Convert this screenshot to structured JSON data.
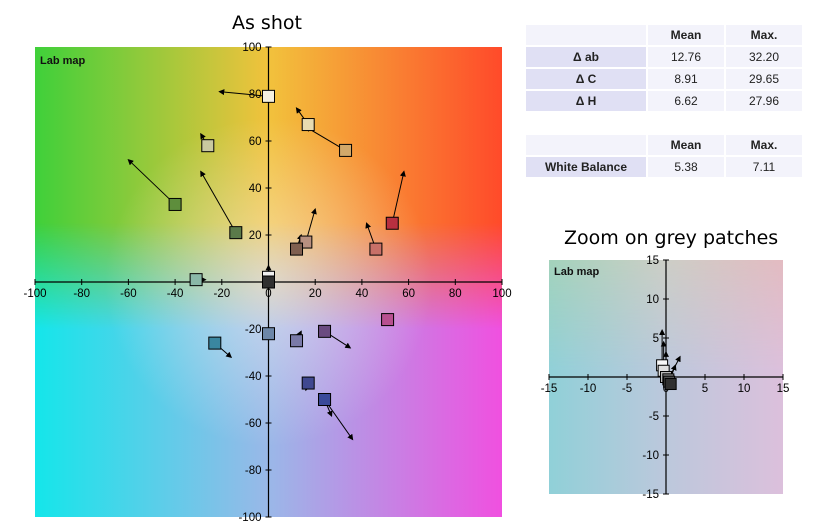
{
  "titles": {
    "main": "As shot",
    "zoom": "Zoom on grey patches"
  },
  "stats_table_1": {
    "headers": [
      "",
      "Mean",
      "Max."
    ],
    "rows": [
      {
        "label": "Δ ab",
        "mean": "12.76",
        "max": "32.20"
      },
      {
        "label": "Δ C",
        "mean": "8.91",
        "max": "29.65"
      },
      {
        "label": "Δ H",
        "mean": "6.62",
        "max": "27.96"
      }
    ]
  },
  "stats_table_2": {
    "headers": [
      "",
      "Mean",
      "Max."
    ],
    "rows": [
      {
        "label": "White Balance",
        "mean": "5.38",
        "max": "7.11"
      }
    ]
  },
  "chart_data": [
    {
      "type": "scatter",
      "title": "As shot",
      "inset_label": "Lab map",
      "xlim": [
        -100,
        100
      ],
      "ylim": [
        -100,
        100
      ],
      "xticks": [
        -100,
        -80,
        -60,
        -40,
        -20,
        0,
        20,
        40,
        60,
        80,
        100
      ],
      "yticks": [
        -100,
        -80,
        -60,
        -40,
        -20,
        0,
        20,
        40,
        60,
        80,
        100
      ],
      "background": "Lab color map",
      "patches": [
        {
          "a": 0,
          "b": 79,
          "to_a": -21,
          "to_b": 81,
          "color": "#f5f0e0"
        },
        {
          "a": 17,
          "b": 67,
          "to_a": 12,
          "to_b": 74,
          "color": "#e8dcb0"
        },
        {
          "a": 33,
          "b": 56,
          "to_a": 16,
          "to_b": 66,
          "color": "#d2a96a"
        },
        {
          "a": -26,
          "b": 58,
          "to_a": -29,
          "to_b": 63,
          "color": "#c9c9a0"
        },
        {
          "a": -40,
          "b": 33,
          "to_a": -60,
          "to_b": 52,
          "color": "#5e8e3c"
        },
        {
          "a": -14,
          "b": 21,
          "to_a": -29,
          "to_b": 47,
          "color": "#5a7a4a"
        },
        {
          "a": 53,
          "b": 25,
          "to_a": 58,
          "to_b": 47,
          "color": "#b83040"
        },
        {
          "a": 46,
          "b": 14,
          "to_a": 42,
          "to_b": 25,
          "color": "#c87068"
        },
        {
          "a": 16,
          "b": 17,
          "to_a": 20,
          "to_b": 31,
          "color": "#b89080"
        },
        {
          "a": 12,
          "b": 14,
          "to_a": 14,
          "to_b": 20,
          "color": "#806050"
        },
        {
          "a": 0,
          "b": 2,
          "to_a": 0,
          "to_b": 7,
          "color": "#f0f0f0"
        },
        {
          "a": 0,
          "b": 0,
          "to_a": 0,
          "to_b": 5,
          "color": "#303030"
        },
        {
          "a": -31,
          "b": 1,
          "to_a": -27,
          "to_b": 1,
          "color": "#8ab8a8"
        },
        {
          "a": -23,
          "b": -26,
          "to_a": -16,
          "to_b": -32,
          "color": "#3a86a0"
        },
        {
          "a": 0,
          "b": -22,
          "to_a": 0,
          "to_b": -22,
          "color": "#6d87a8"
        },
        {
          "a": 12,
          "b": -25,
          "to_a": 14,
          "to_b": -21,
          "color": "#7a7aa8"
        },
        {
          "a": 24,
          "b": -21,
          "to_a": 35,
          "to_b": -28,
          "color": "#6a4a80"
        },
        {
          "a": 51,
          "b": -16,
          "to_a": 51,
          "to_b": -16,
          "color": "#b85090"
        },
        {
          "a": 17,
          "b": -43,
          "to_a": 16,
          "to_b": -46,
          "color": "#404890"
        },
        {
          "a": 24,
          "b": -50,
          "to_a": 27,
          "to_b": -57,
          "color": "#3a4a9a"
        },
        {
          "a": 24,
          "b": -50,
          "to_a": 36,
          "to_b": -67,
          "color": "#3a4a9a"
        }
      ]
    },
    {
      "type": "scatter",
      "title": "Zoom on grey patches",
      "inset_label": "Lab map",
      "xlim": [
        -15,
        15
      ],
      "ylim": [
        -15,
        15
      ],
      "xticks": [
        -15,
        -10,
        -5,
        0,
        5,
        10,
        15
      ],
      "yticks": [
        -15,
        -10,
        -5,
        0,
        5,
        10,
        15
      ],
      "background": "Lab color map",
      "patches": [
        {
          "a": -0.5,
          "b": 1.5,
          "to_a": -0.5,
          "to_b": 6,
          "color": "#f8f8f8"
        },
        {
          "a": -0.3,
          "b": 0.8,
          "to_a": -0.3,
          "to_b": 4.5,
          "color": "#e0e0e0"
        },
        {
          "a": 0,
          "b": 0,
          "to_a": 0,
          "to_b": 3.2,
          "color": "#b8b8b8"
        },
        {
          "a": 0.3,
          "b": -0.3,
          "to_a": 1.8,
          "to_b": 2.6,
          "color": "#808080"
        },
        {
          "a": 0.4,
          "b": -0.6,
          "to_a": 1.2,
          "to_b": 1.5,
          "color": "#505050"
        },
        {
          "a": 0.6,
          "b": -0.9,
          "to_a": 0.6,
          "to_b": 0.4,
          "color": "#303030"
        }
      ]
    }
  ]
}
